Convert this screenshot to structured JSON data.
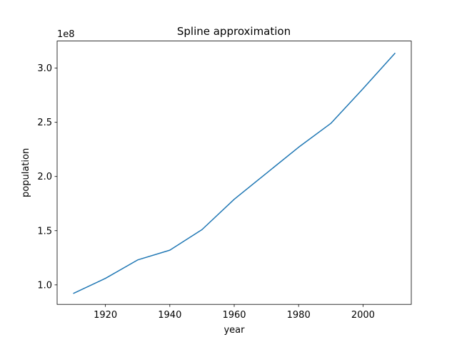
{
  "chart_data": {
    "type": "line",
    "title": "Spline approximation",
    "xlabel": "year",
    "ylabel": "population",
    "y_offset_label": "1e8",
    "xlim": [
      1905,
      2015
    ],
    "ylim": [
      0.82,
      3.25
    ],
    "x_ticks": [
      1920,
      1940,
      1960,
      1980,
      2000
    ],
    "y_ticks": [
      1.0,
      1.5,
      2.0,
      2.5,
      3.0
    ],
    "y_tick_labels": [
      "1.0",
      "1.5",
      "2.0",
      "2.5",
      "3.0"
    ],
    "grid": false,
    "line_color": "#1f77b4",
    "series": [
      {
        "x": [
          1910,
          1920,
          1930,
          1940,
          1950,
          1960,
          1970,
          1980,
          1990,
          2000,
          2010
        ],
        "values": [
          0.92,
          1.06,
          1.23,
          1.32,
          1.51,
          1.79,
          2.03,
          2.27,
          2.49,
          2.81,
          3.14
        ]
      }
    ]
  }
}
